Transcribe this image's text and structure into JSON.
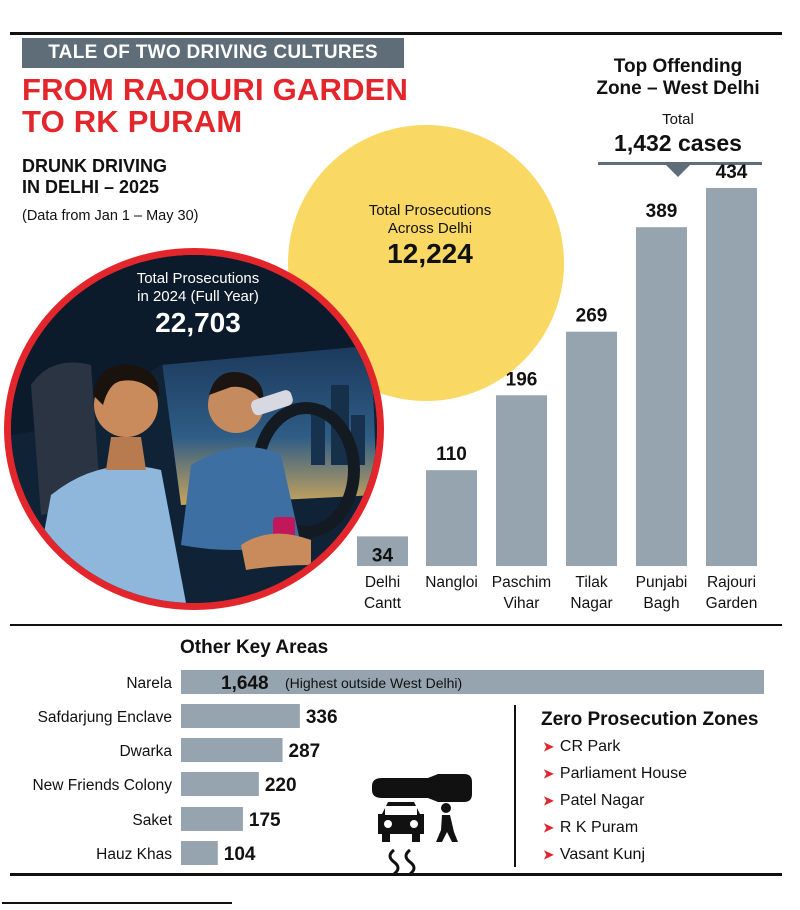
{
  "header": {
    "kicker": "TALE OF TWO DRIVING CULTURES",
    "headline_line1": "FROM RAJOURI GARDEN",
    "headline_line2": "TO RK PURAM",
    "sub_line1": "DRUNK DRIVING",
    "sub_line2": "IN DELHI – 2025",
    "period": "(Data from Jan 1 – May 30)"
  },
  "totals": {
    "delhi_label_line1": "Total Prosecutions",
    "delhi_label_line2": "Across Delhi",
    "delhi_value": "12,224",
    "prev_label_line1": "Total Prosecutions",
    "prev_label_line2": "in 2024 (Full Year)",
    "prev_value": "22,703"
  },
  "top_zone": {
    "title_line1": "Top Offending",
    "title_line2": "Zone – West Delhi",
    "total_label": "Total",
    "total_value": "1,432 cases"
  },
  "other": {
    "title": "Other Key Areas",
    "narela_note": "(Highest outside West Delhi)"
  },
  "zero": {
    "title": "Zero Prosecution Zones",
    "items": [
      "CR Park",
      "Parliament House",
      "Patel Nagar",
      "R K Puram",
      "Vasant Kunj"
    ]
  },
  "colors": {
    "accent_red": "#e3262b",
    "bar_gray": "#95a4ae",
    "yellow": "#fad864",
    "kicker_gray": "#5f6d78"
  },
  "chart_data": [
    {
      "type": "bar",
      "orientation": "vertical",
      "categories": [
        [
          "Delhi",
          "Cantt"
        ],
        [
          "Nangloi"
        ],
        [
          "Paschim",
          "Vihar"
        ],
        [
          "Tilak",
          "Nagar"
        ],
        [
          "Punjabi",
          "Bagh"
        ],
        [
          "Rajouri",
          "Garden"
        ]
      ],
      "values": [
        34,
        110,
        196,
        269,
        389,
        434
      ],
      "value_labels": [
        "34",
        "110",
        "196",
        "269",
        "389",
        "434"
      ],
      "grid": false
    },
    {
      "type": "bar",
      "orientation": "horizontal",
      "categories": [
        "Narela",
        "Safdarjung Enclave",
        "Dwarka",
        "New Friends Colony",
        "Saket",
        "Hauz Khas"
      ],
      "values": [
        1648,
        336,
        287,
        220,
        175,
        104
      ],
      "value_labels": [
        "1,648",
        "336",
        "287",
        "220",
        "175",
        "104"
      ],
      "grid": false
    }
  ]
}
